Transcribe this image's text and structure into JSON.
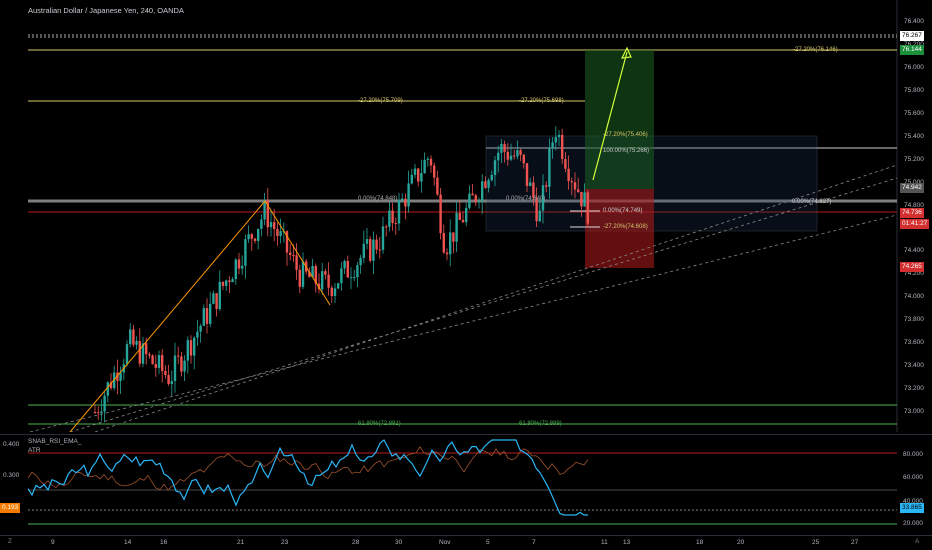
{
  "title": "Australian Dollar / Japanese Yen, 240, OANDA",
  "price_axis": [
    "76.400",
    "76.200",
    "76.000",
    "75.800",
    "75.600",
    "75.400",
    "75.200",
    "75.000",
    "74.800",
    "74.600",
    "74.400",
    "74.200",
    "74.000",
    "73.800",
    "73.600",
    "73.400",
    "73.200",
    "73.000"
  ],
  "price_tags": {
    "upper": "76.267",
    "target": "76.144",
    "current_ref": "74.942",
    "price": "74.736",
    "countdown": "01:41:27",
    "stop": "74.265"
  },
  "fib_labels": {
    "top_ext": "-27.20%(76.146)",
    "ext_left": "-27.20%(75.709)",
    "ext_mid": "-27.20%(75.698)",
    "ext_box": "-27.20%(75.406)",
    "hundred": "100.00%(75.266)",
    "zero_mid_left": "0.00%(74.848)",
    "zero_mid": "0.00%(74.840)",
    "zero_right": "0.00%(74.827)",
    "zero_low": "0.00%(74.749)",
    "ext_low": "-27.20%(74.608)",
    "fib618_left": "61.80%(72.891)",
    "fib618_right": "61.80%(72.889)"
  },
  "indicator": {
    "name": "SNAB_RSI_EMA_",
    "sub": "ATR",
    "left_axis": [
      "0.400",
      "0.300"
    ],
    "left_tag": "0.193",
    "right_axis": [
      "80.000",
      "60.000",
      "40.000",
      "20.000"
    ],
    "right_tag": "33.865"
  },
  "time_axis": [
    "9",
    "14",
    "16",
    "21",
    "23",
    "28",
    "30",
    "Nov",
    "5",
    "7",
    "11",
    "13",
    "18",
    "20",
    "25",
    "27"
  ],
  "corner_left": "Z",
  "corner_right": "A",
  "colors": {
    "up": "#26a69a",
    "down": "#ef5350",
    "fib_yellow": "#d6c76b",
    "green_line": "#4caf50",
    "orange": "#ff9800",
    "rsi_blue": "#29b6f6",
    "tag_green": "#1b8f3a",
    "tag_red": "#d32f2f"
  }
}
